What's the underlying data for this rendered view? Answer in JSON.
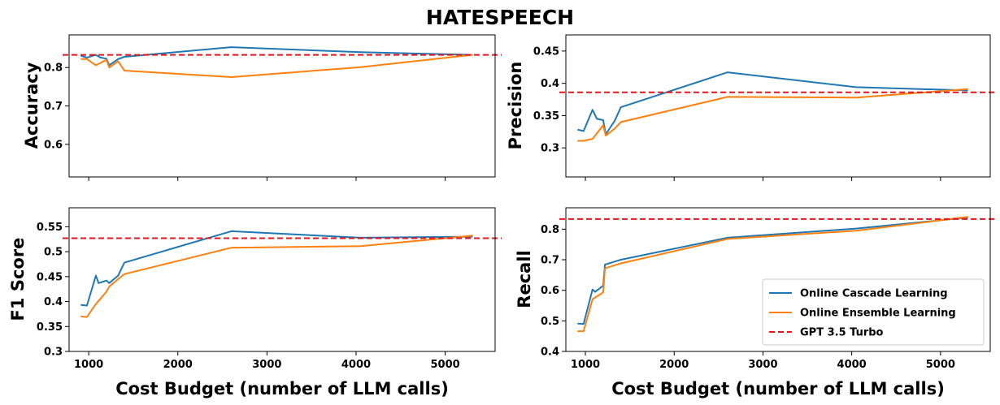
{
  "chart_data": {
    "type": "line",
    "suptitle": "HATESPEECH",
    "colors": {
      "cascade": "#1f77b4",
      "ensemble": "#ff7f0e",
      "baseline": "#e8141c"
    },
    "legend": {
      "placement": "lower-right of Recall subplot",
      "entries": [
        "Online Cascade Learning",
        "Online Ensemble Learning",
        "GPT 3.5 Turbo"
      ]
    },
    "xlabel": "Cost Budget (number of LLM calls)",
    "xlim": [
      780,
      5560
    ],
    "xticks": [
      1000,
      2000,
      3000,
      4000,
      5000
    ],
    "subplots": [
      {
        "id": "accuracy",
        "ylabel": "Accuracy",
        "ylim": [
          0.515,
          0.885
        ],
        "yticks": [
          0.6,
          0.7,
          0.8
        ],
        "show_xticklabels": false,
        "baseline": 0.833,
        "series": [
          {
            "name": "Online Cascade Learning",
            "x": [
              920,
              980,
              1080,
              1130,
              1200,
              1230,
              1330,
              1400,
              2600,
              4050,
              5300
            ],
            "y": [
              0.83,
              0.826,
              0.833,
              0.826,
              0.823,
              0.806,
              0.822,
              0.828,
              0.853,
              0.84,
              0.833
            ]
          },
          {
            "name": "Online Ensemble Learning",
            "x": [
              920,
              980,
              1080,
              1200,
              1230,
              1330,
              1400,
              2600,
              4050,
              5300
            ],
            "y": [
              0.822,
              0.822,
              0.806,
              0.82,
              0.8,
              0.816,
              0.792,
              0.775,
              0.801,
              0.833
            ]
          }
        ]
      },
      {
        "id": "precision",
        "ylabel": "Precision",
        "ylim": [
          0.255,
          0.475
        ],
        "yticks": [
          0.3,
          0.35,
          0.4,
          0.45
        ],
        "show_xticklabels": false,
        "baseline": 0.386,
        "series": [
          {
            "name": "Online Cascade Learning",
            "x": [
              920,
              980,
              1080,
              1130,
              1200,
              1230,
              1330,
              1400,
              2600,
              4050,
              5300
            ],
            "y": [
              0.328,
              0.326,
              0.359,
              0.345,
              0.343,
              0.321,
              0.342,
              0.363,
              0.417,
              0.394,
              0.389
            ]
          },
          {
            "name": "Online Ensemble Learning",
            "x": [
              920,
              980,
              1080,
              1200,
              1230,
              1330,
              1400,
              2600,
              4050,
              5300
            ],
            "y": [
              0.311,
              0.311,
              0.314,
              0.335,
              0.319,
              0.33,
              0.34,
              0.379,
              0.378,
              0.391
            ]
          }
        ]
      },
      {
        "id": "f1",
        "ylabel": "F1 Score",
        "ylim": [
          0.3,
          0.588
        ],
        "yticks": [
          0.3,
          0.35,
          0.4,
          0.45,
          0.5,
          0.55
        ],
        "show_xticklabels": true,
        "baseline": 0.527,
        "series": [
          {
            "name": "Online Cascade Learning",
            "x": [
              920,
              980,
              1080,
              1110,
              1200,
              1230,
              1330,
              1400,
              2600,
              4050,
              5300
            ],
            "y": [
              0.393,
              0.392,
              0.452,
              0.437,
              0.442,
              0.437,
              0.452,
              0.478,
              0.541,
              0.528,
              0.53
            ]
          },
          {
            "name": "Online Ensemble Learning",
            "x": [
              920,
              980,
              1080,
              1200,
              1230,
              1330,
              1400,
              2600,
              4050,
              5300
            ],
            "y": [
              0.37,
              0.369,
              0.395,
              0.42,
              0.43,
              0.445,
              0.455,
              0.508,
              0.511,
              0.532
            ]
          }
        ]
      },
      {
        "id": "recall",
        "ylabel": "Recall",
        "ylim": [
          0.4,
          0.87
        ],
        "yticks": [
          0.4,
          0.5,
          0.6,
          0.7,
          0.8
        ],
        "show_xticklabels": true,
        "baseline": 0.833,
        "series": [
          {
            "name": "Online Cascade Learning",
            "x": [
              920,
              980,
              1080,
              1110,
              1200,
              1220,
              1330,
              1400,
              2600,
              4050,
              5300
            ],
            "y": [
              0.491,
              0.49,
              0.603,
              0.595,
              0.615,
              0.684,
              0.694,
              0.7,
              0.772,
              0.802,
              0.838
            ]
          },
          {
            "name": "Online Ensemble Learning",
            "x": [
              920,
              980,
              1080,
              1200,
              1220,
              1330,
              1400,
              2600,
              4050,
              5300
            ],
            "y": [
              0.466,
              0.466,
              0.571,
              0.593,
              0.672,
              0.682,
              0.688,
              0.768,
              0.795,
              0.84
            ]
          }
        ]
      }
    ]
  }
}
